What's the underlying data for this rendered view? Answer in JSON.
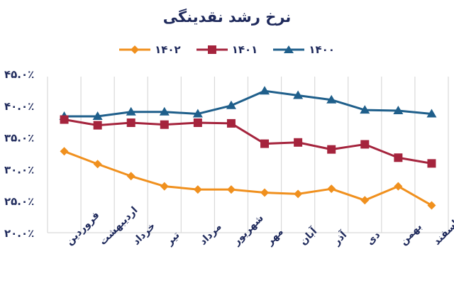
{
  "chart_data": {
    "type": "line",
    "title": "نرخ رشد نقدینگی",
    "xlabel": "",
    "ylabel": "",
    "ylim": [
      20,
      45
    ],
    "yticks": [
      "۲۰.۰٪",
      "۲۵.۰٪",
      "۳۰.۰٪",
      "۳۵.۰٪",
      "۴۰.۰٪",
      "۴۵.۰٪"
    ],
    "ytick_values": [
      20,
      25,
      30,
      35,
      40,
      45
    ],
    "grid": "vertical",
    "legend_position": "top",
    "categories": [
      "فروردین",
      "اردیبهشت",
      "خرداد",
      "تیر",
      "مرداد",
      "شهریور",
      "مهر",
      "آبان",
      "آذر",
      "دی",
      "بهمن",
      "اسفند"
    ],
    "series": [
      {
        "name": "۱۴۰۰",
        "color": "#1f5f8b",
        "marker": "triangle",
        "values": [
          38.3,
          38.3,
          39.0,
          39.0,
          38.7,
          40.0,
          42.3,
          41.6,
          40.9,
          39.3,
          39.2,
          38.7
        ]
      },
      {
        "name": "۱۴۰۱",
        "color": "#a5243d",
        "marker": "square",
        "values": [
          37.8,
          36.9,
          37.3,
          37.0,
          37.3,
          37.2,
          34.0,
          34.2,
          33.1,
          33.9,
          31.8,
          30.9
        ]
      },
      {
        "name": "۱۴۰۲",
        "color": "#f0901e",
        "marker": "diamond",
        "values": [
          32.8,
          30.8,
          28.9,
          27.3,
          26.8,
          26.8,
          26.3,
          26.1,
          26.9,
          25.1,
          27.3,
          24.3
        ]
      }
    ]
  },
  "legend_order": [
    2,
    1,
    0
  ]
}
